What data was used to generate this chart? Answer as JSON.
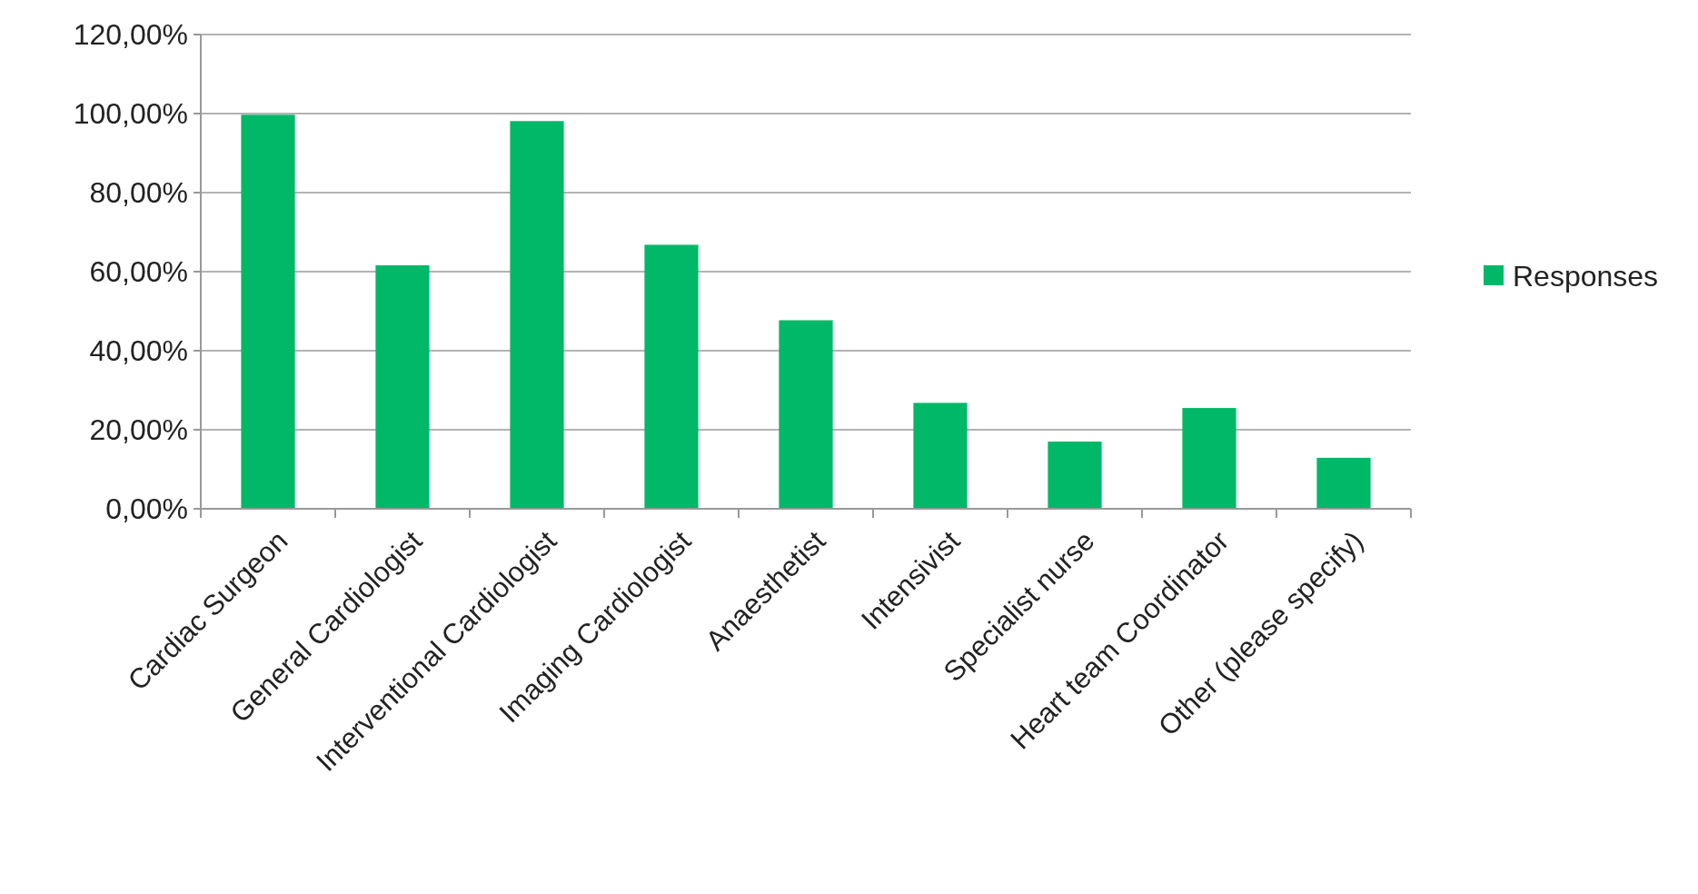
{
  "chart_data": {
    "type": "bar",
    "categories": [
      "Cardiac Surgeon",
      "General Cardiologist",
      "Interventional Cardiologist",
      "Imaging Cardiologist",
      "Anaesthetist",
      "Intensivist",
      "Specialist nurse",
      "Heart team Coordinator",
      "Other (please specify)"
    ],
    "series": [
      {
        "name": "Responses",
        "color": "#00b868",
        "values": [
          99.7,
          61.6,
          98.1,
          66.8,
          47.7,
          26.8,
          17.0,
          25.5,
          12.9
        ]
      }
    ],
    "ylim": [
      0,
      120
    ],
    "yticks": [
      {
        "value": 0,
        "label": "0,00%"
      },
      {
        "value": 20,
        "label": "20,00%"
      },
      {
        "value": 40,
        "label": "40,00%"
      },
      {
        "value": 60,
        "label": "60,00%"
      },
      {
        "value": 80,
        "label": "80,00%"
      },
      {
        "value": 100,
        "label": "100,00%"
      },
      {
        "value": 120,
        "label": "120,00%"
      }
    ],
    "grid": "y",
    "legend": "right"
  }
}
